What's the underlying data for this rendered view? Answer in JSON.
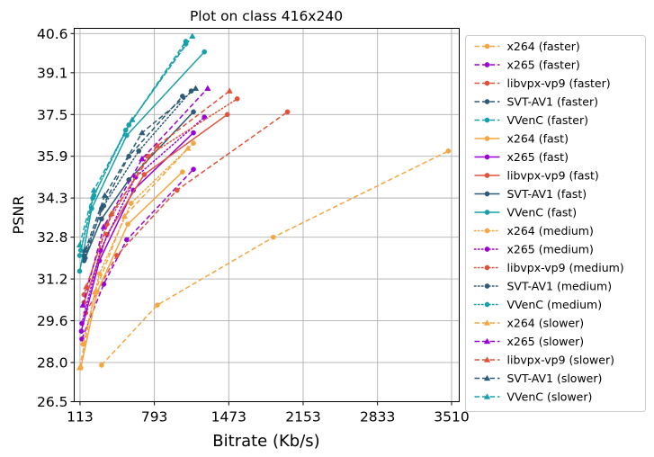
{
  "chart_data": {
    "type": "line",
    "title": "Plot on class 416x240",
    "xlabel": "Bitrate (Kb/s)",
    "ylabel": "PSNR",
    "xlim": [
      60,
      3580
    ],
    "ylim": [
      26.5,
      40.8
    ],
    "xticks": [
      113,
      793,
      1473,
      2153,
      2833,
      3510
    ],
    "xtick_labels": [
      "113",
      "793",
      "1473",
      "2153",
      "2833",
      "3510"
    ],
    "yticks": [
      26.5,
      28.0,
      29.6,
      31.2,
      32.8,
      34.3,
      35.9,
      37.5,
      39.1,
      40.6
    ],
    "ytick_labels": [
      "26.5",
      "28.0",
      "29.6",
      "31.2",
      "32.8",
      "34.3",
      "35.9",
      "37.5",
      "39.1",
      "40.6"
    ],
    "grid": true,
    "legend_position": "outside-right",
    "series": [
      {
        "name": "x264 (faster)",
        "color": "#F4A640",
        "dash": "dashed",
        "marker": "circle",
        "points": [
          [
            310,
            27.9
          ],
          [
            820,
            30.2
          ],
          [
            1880,
            32.8
          ],
          [
            3480,
            36.1
          ]
        ]
      },
      {
        "name": "x265 (faster)",
        "color": "#9B00D9",
        "dash": "dashed",
        "marker": "circle",
        "points": [
          [
            130,
            28.9
          ],
          [
            330,
            31.0
          ],
          [
            540,
            32.7
          ],
          [
            1150,
            35.4
          ]
        ]
      },
      {
        "name": "libvpx-vp9 (faster)",
        "color": "#E0523A",
        "dash": "dashed",
        "marker": "circle",
        "points": [
          [
            165,
            29.9
          ],
          [
            450,
            32.1
          ],
          [
            1000,
            34.6
          ],
          [
            2010,
            37.6
          ]
        ]
      },
      {
        "name": "SVT-AV1 (faster)",
        "color": "#2E5B78",
        "dash": "dashed",
        "marker": "circle",
        "points": [
          [
            160,
            32.0
          ],
          [
            310,
            33.9
          ],
          [
            560,
            35.9
          ],
          [
            1050,
            38.2
          ]
        ]
      },
      {
        "name": "VVenC (faster)",
        "color": "#16A0AA",
        "dash": "dashed",
        "marker": "circle",
        "points": [
          [
            120,
            32.3
          ],
          [
            230,
            34.3
          ],
          [
            530,
            36.9
          ],
          [
            1080,
            40.3
          ]
        ]
      },
      {
        "name": "x264 (fast)",
        "color": "#F4A640",
        "dash": "solid",
        "marker": "circle",
        "points": [
          [
            120,
            27.8
          ],
          [
            270,
            30.7
          ],
          [
            550,
            33.3
          ],
          [
            1050,
            35.3
          ]
        ]
      },
      {
        "name": "x265 (fast)",
        "color": "#9B00D9",
        "dash": "solid",
        "marker": "circle",
        "points": [
          [
            125,
            29.2
          ],
          [
            290,
            31.9
          ],
          [
            600,
            34.6
          ],
          [
            1150,
            36.8
          ]
        ]
      },
      {
        "name": "libvpx-vp9 (fast)",
        "color": "#E0523A",
        "dash": "solid",
        "marker": "circle",
        "points": [
          [
            150,
            30.3
          ],
          [
            360,
            32.9
          ],
          [
            700,
            35.2
          ],
          [
            1460,
            37.5
          ]
        ]
      },
      {
        "name": "SVT-AV1 (fast)",
        "color": "#2E5B78",
        "dash": "solid",
        "marker": "circle",
        "points": [
          [
            150,
            31.9
          ],
          [
            310,
            33.5
          ],
          [
            560,
            35.0
          ],
          [
            1150,
            37.6
          ]
        ]
      },
      {
        "name": "VVenC (fast)",
        "color": "#16A0AA",
        "dash": "solid",
        "marker": "circle",
        "points": [
          [
            110,
            31.5
          ],
          [
            220,
            33.9
          ],
          [
            540,
            36.7
          ],
          [
            1250,
            39.9
          ]
        ]
      },
      {
        "name": "x264 (medium)",
        "color": "#F4A640",
        "dash": "dotted",
        "marker": "circle",
        "points": [
          [
            140,
            28.7
          ],
          [
            290,
            31.4
          ],
          [
            580,
            34.1
          ],
          [
            1150,
            36.4
          ]
        ]
      },
      {
        "name": "x265 (medium)",
        "color": "#9B00D9",
        "dash": "dotted",
        "marker": "circle",
        "points": [
          [
            130,
            29.5
          ],
          [
            300,
            32.3
          ],
          [
            620,
            35.1
          ],
          [
            1250,
            37.4
          ]
        ]
      },
      {
        "name": "libvpx-vp9 (medium)",
        "color": "#E0523A",
        "dash": "dotted",
        "marker": "circle",
        "points": [
          [
            150,
            30.6
          ],
          [
            360,
            33.3
          ],
          [
            730,
            35.9
          ],
          [
            1550,
            38.1
          ]
        ]
      },
      {
        "name": "SVT-AV1 (medium)",
        "color": "#2E5B78",
        "dash": "dotted",
        "marker": "circle",
        "points": [
          [
            150,
            32.1
          ],
          [
            330,
            34.0
          ],
          [
            650,
            36.1
          ],
          [
            1130,
            38.4
          ]
        ]
      },
      {
        "name": "VVenC (medium)",
        "color": "#16A0AA",
        "dash": "dotted",
        "marker": "circle",
        "points": [
          [
            110,
            32.1
          ],
          [
            240,
            34.4
          ],
          [
            560,
            37.1
          ],
          [
            1080,
            40.2
          ]
        ]
      },
      {
        "name": "x264 (slower)",
        "color": "#F4A640",
        "dash": "dashed",
        "marker": "triangle",
        "points": [
          [
            110,
            27.8
          ],
          [
            250,
            30.7
          ],
          [
            520,
            33.6
          ],
          [
            1100,
            36.2
          ]
        ]
      },
      {
        "name": "x265 (slower)",
        "color": "#9B00D9",
        "dash": "dashed",
        "marker": "triangle",
        "points": [
          [
            140,
            30.2
          ],
          [
            330,
            33.2
          ],
          [
            680,
            35.8
          ],
          [
            1280,
            38.5
          ]
        ]
      },
      {
        "name": "libvpx-vp9 (slower)",
        "color": "#E0523A",
        "dash": "dashed",
        "marker": "triangle",
        "points": [
          [
            170,
            30.9
          ],
          [
            400,
            33.7
          ],
          [
            820,
            36.3
          ],
          [
            1480,
            38.4
          ]
        ]
      },
      {
        "name": "SVT-AV1 (slower)",
        "color": "#2E5B78",
        "dash": "dashed",
        "marker": "triangle",
        "points": [
          [
            160,
            32.3
          ],
          [
            340,
            34.4
          ],
          [
            680,
            36.8
          ],
          [
            1170,
            38.5
          ]
        ]
      },
      {
        "name": "VVenC (slower)",
        "color": "#16A0AA",
        "dash": "dashed",
        "marker": "triangle",
        "points": [
          [
            110,
            32.5
          ],
          [
            240,
            34.6
          ],
          [
            590,
            37.3
          ],
          [
            1140,
            40.5
          ]
        ]
      }
    ]
  }
}
